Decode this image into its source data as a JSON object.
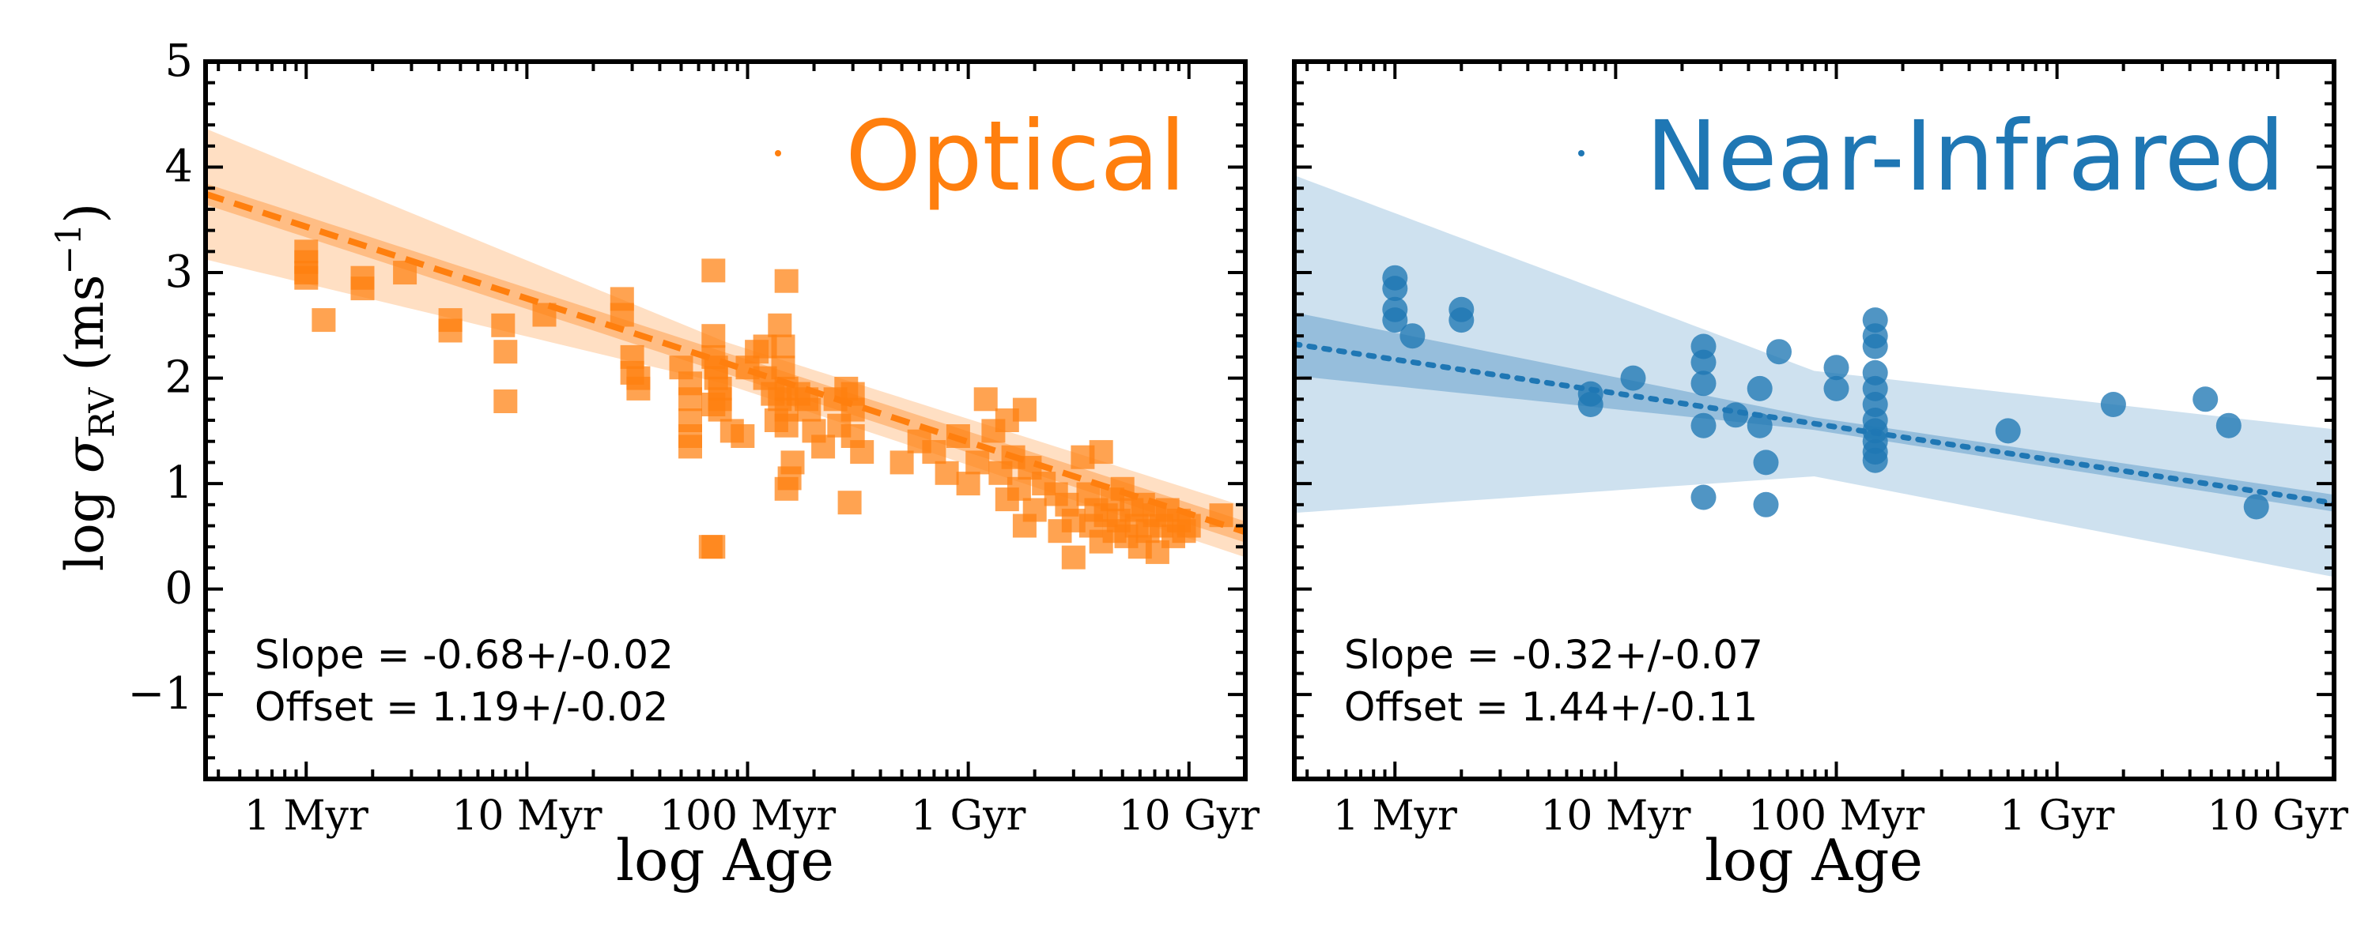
{
  "figure": {
    "ylabel_prefix": "log ",
    "ylabel_sigma": "σ",
    "ylabel_sub": "RV",
    "ylabel_unit": " (ms",
    "ylabel_exp": "−1",
    "ylabel_close": ")"
  },
  "chart_data": [
    {
      "type": "scatter",
      "panel": "left",
      "title": "Optical",
      "xlabel": "log Age",
      "ylabel": "log σRV (ms−1)",
      "x_scale": "log",
      "x_unit": "yr",
      "xlim": [
        350000,
        18000000000
      ],
      "ylim": [
        -1.8,
        5
      ],
      "x_ticks": [
        {
          "value": 1000000,
          "label": "1 Myr"
        },
        {
          "value": 10000000,
          "label": "10 Myr"
        },
        {
          "value": 100000000,
          "label": "100 Myr"
        },
        {
          "value": 1000000000,
          "label": "1 Gyr"
        },
        {
          "value": 10000000000,
          "label": "10 Gyr"
        }
      ],
      "y_ticks": [
        {
          "value": -1,
          "label": "−1"
        },
        {
          "value": 0,
          "label": "0"
        },
        {
          "value": 1,
          "label": "1"
        },
        {
          "value": 2,
          "label": "2"
        },
        {
          "value": 3,
          "label": "3"
        },
        {
          "value": 4,
          "label": "4"
        },
        {
          "value": 5,
          "label": "5"
        }
      ],
      "marker": "square",
      "color": "#ff7f0e",
      "fit_style": "dashed",
      "fit": {
        "slope": -0.68,
        "offset": 1.19,
        "pivot_age": 2000000000
      },
      "band_inner_width": 0.1,
      "band_outer_width": [
        0.62,
        0.2,
        0.24
      ],
      "annotations": [
        "Slope = -0.68+/-0.02",
        "Offset = 1.19+/-0.02"
      ],
      "legend": "top-right",
      "points": [
        [
          1000000,
          3.2
        ],
        [
          1000000,
          3.1
        ],
        [
          1000000,
          3.0
        ],
        [
          1000000,
          2.95
        ],
        [
          1200000,
          2.55
        ],
        [
          1800000,
          2.85
        ],
        [
          1800000,
          2.95
        ],
        [
          2800000,
          3.0
        ],
        [
          4500000,
          2.55
        ],
        [
          4500000,
          2.45
        ],
        [
          7800000,
          2.5
        ],
        [
          8000000,
          2.25
        ],
        [
          8000000,
          1.78
        ],
        [
          12000000,
          2.6
        ],
        [
          27000000,
          2.75
        ],
        [
          27000000,
          2.6
        ],
        [
          30000000,
          2.2
        ],
        [
          30000000,
          2.05
        ],
        [
          32000000,
          2.0
        ],
        [
          32000000,
          1.9
        ],
        [
          50000000,
          2.1
        ],
        [
          55000000,
          1.95
        ],
        [
          55000000,
          1.8
        ],
        [
          55000000,
          1.6
        ],
        [
          55000000,
          1.45
        ],
        [
          55000000,
          1.35
        ],
        [
          70000000,
          3.02
        ],
        [
          70000000,
          2.4
        ],
        [
          70000000,
          2.2
        ],
        [
          72000000,
          2.1
        ],
        [
          72000000,
          2.0
        ],
        [
          75000000,
          1.9
        ],
        [
          75000000,
          1.8
        ],
        [
          75000000,
          1.7
        ],
        [
          70000000,
          1.75
        ],
        [
          70000000,
          0.4
        ],
        [
          68000000,
          0.4
        ],
        [
          85000000,
          1.5
        ],
        [
          95000000,
          1.45
        ],
        [
          100000000,
          2.1
        ],
        [
          110000000,
          2.25
        ],
        [
          120000000,
          2.3
        ],
        [
          120000000,
          2.0
        ],
        [
          130000000,
          1.85
        ],
        [
          135000000,
          1.6
        ],
        [
          140000000,
          1.8
        ],
        [
          140000000,
          2.5
        ],
        [
          145000000,
          2.3
        ],
        [
          145000000,
          2.1
        ],
        [
          150000000,
          1.9
        ],
        [
          150000000,
          1.7
        ],
        [
          150000000,
          1.55
        ],
        [
          150000000,
          2.92
        ],
        [
          150000000,
          0.95
        ],
        [
          155000000,
          1.05
        ],
        [
          160000000,
          1.2
        ],
        [
          170000000,
          1.85
        ],
        [
          185000000,
          1.8
        ],
        [
          190000000,
          1.7
        ],
        [
          200000000,
          1.5
        ],
        [
          220000000,
          1.35
        ],
        [
          250000000,
          1.8
        ],
        [
          260000000,
          1.55
        ],
        [
          280000000,
          1.9
        ],
        [
          300000000,
          1.85
        ],
        [
          300000000,
          1.7
        ],
        [
          300000000,
          1.45
        ],
        [
          290000000,
          0.82
        ],
        [
          330000000,
          1.3
        ],
        [
          500000000,
          1.2
        ],
        [
          600000000,
          1.4
        ],
        [
          700000000,
          1.3
        ],
        [
          800000000,
          1.1
        ],
        [
          900000000,
          1.45
        ],
        [
          1000000000,
          1.0
        ],
        [
          1100000000,
          1.2
        ],
        [
          1200000000,
          1.8
        ],
        [
          1300000000,
          1.5
        ],
        [
          1400000000,
          1.1
        ],
        [
          1500000000,
          1.6
        ],
        [
          1500000000,
          0.85
        ],
        [
          1600000000,
          1.25
        ],
        [
          1700000000,
          0.95
        ],
        [
          1800000000,
          1.7
        ],
        [
          1800000000,
          0.6
        ],
        [
          1900000000,
          1.15
        ],
        [
          2000000000,
          0.75
        ],
        [
          2200000000,
          1.0
        ],
        [
          2500000000,
          0.9
        ],
        [
          2600000000,
          0.55
        ],
        [
          2800000000,
          0.8
        ],
        [
          3000000000,
          0.65
        ],
        [
          3000000000,
          0.3
        ],
        [
          3300000000,
          1.25
        ],
        [
          3500000000,
          0.9
        ],
        [
          3600000000,
          0.6
        ],
        [
          3800000000,
          0.75
        ],
        [
          4000000000,
          1.3
        ],
        [
          4000000000,
          0.45
        ],
        [
          4200000000,
          0.7
        ],
        [
          4500000000,
          0.85
        ],
        [
          4600000000,
          0.55
        ],
        [
          4800000000,
          0.65
        ],
        [
          5000000000,
          0.95
        ],
        [
          5200000000,
          0.5
        ],
        [
          5500000000,
          0.75
        ],
        [
          5800000000,
          0.6
        ],
        [
          6000000000,
          0.4
        ],
        [
          6200000000,
          0.8
        ],
        [
          6500000000,
          0.55
        ],
        [
          7000000000,
          0.7
        ],
        [
          7200000000,
          0.35
        ],
        [
          7500000000,
          0.6
        ],
        [
          8000000000,
          0.75
        ],
        [
          8500000000,
          0.5
        ],
        [
          9000000000,
          0.65
        ],
        [
          9500000000,
          0.55
        ],
        [
          10000000000,
          0.6
        ],
        [
          14000000000,
          0.7
        ]
      ]
    },
    {
      "type": "scatter",
      "panel": "right",
      "title": "Near-Infrared",
      "xlabel": "log Age",
      "x_scale": "log",
      "x_unit": "yr",
      "xlim": [
        350000,
        18000000000
      ],
      "ylim": [
        -1.8,
        5
      ],
      "x_ticks": [
        {
          "value": 1000000,
          "label": "1 Myr"
        },
        {
          "value": 10000000,
          "label": "10 Myr"
        },
        {
          "value": 100000000,
          "label": "100 Myr"
        },
        {
          "value": 1000000000,
          "label": "1 Gyr"
        },
        {
          "value": 10000000000,
          "label": "10 Gyr"
        }
      ],
      "marker": "circle",
      "color": "#1f77b4",
      "fit_style": "dotted",
      "fit": {
        "slope": -0.32,
        "offset": 1.44,
        "pivot_age": 200000000
      },
      "band_inner_width": [
        0.3,
        0.06,
        0.08
      ],
      "band_outer_width": [
        1.6,
        0.5,
        0.7
      ],
      "annotations": [
        "Slope = -0.32+/-0.07",
        "Offset = 1.44+/-0.11"
      ],
      "legend": "top-right",
      "points": [
        [
          1000000,
          2.95
        ],
        [
          1000000,
          2.85
        ],
        [
          1000000,
          2.65
        ],
        [
          1000000,
          2.55
        ],
        [
          1200000,
          2.4
        ],
        [
          2000000,
          2.65
        ],
        [
          2000000,
          2.55
        ],
        [
          7700000,
          1.85
        ],
        [
          7700000,
          1.75
        ],
        [
          12000000,
          2.0
        ],
        [
          25000000,
          2.3
        ],
        [
          25000000,
          2.15
        ],
        [
          25000000,
          1.95
        ],
        [
          25000000,
          1.55
        ],
        [
          25000000,
          0.87
        ],
        [
          35000000,
          1.65
        ],
        [
          45000000,
          1.55
        ],
        [
          45000000,
          1.9
        ],
        [
          48000000,
          1.2
        ],
        [
          48000000,
          0.8
        ],
        [
          55000000,
          2.25
        ],
        [
          100000000,
          2.1
        ],
        [
          100000000,
          1.9
        ],
        [
          150000000,
          2.55
        ],
        [
          150000000,
          2.4
        ],
        [
          150000000,
          2.3
        ],
        [
          150000000,
          2.05
        ],
        [
          150000000,
          1.9
        ],
        [
          150000000,
          1.75
        ],
        [
          150000000,
          1.6
        ],
        [
          150000000,
          1.5
        ],
        [
          150000000,
          1.4
        ],
        [
          150000000,
          1.3
        ],
        [
          150000000,
          1.22
        ],
        [
          600000000,
          1.5
        ],
        [
          1800000000,
          1.75
        ],
        [
          4700000000,
          1.8
        ],
        [
          6000000000,
          1.55
        ],
        [
          8000000000,
          0.78
        ]
      ]
    }
  ]
}
